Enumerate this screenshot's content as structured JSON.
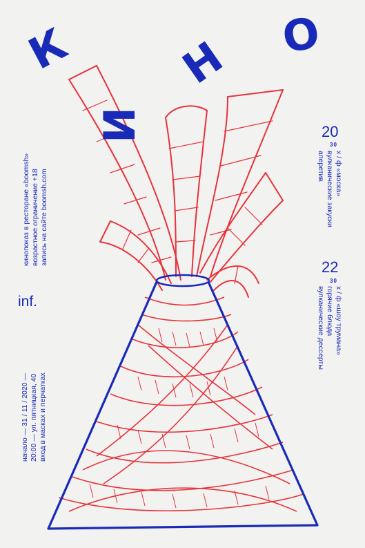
{
  "title": {
    "letters": [
      "К",
      "И",
      "Н",
      "О"
    ]
  },
  "left_info": {
    "lines": [
      "кинопоказ в ресторане «boomsh»",
      "возрастное ограничение +18",
      "запись на сайте boomsh.com"
    ]
  },
  "inf_section": {
    "label": "inf.",
    "lines": [
      "начало — 31 / 11 / 2020 —",
      "20:00 — ул. пятницкая, 40",
      "вход в масках и перчатках"
    ]
  },
  "events": [
    {
      "day": "20",
      "time": "30",
      "film": "х / ф «моска»",
      "menu": [
        "вулканические закуски",
        "аперетив"
      ]
    },
    {
      "day": "22",
      "time": "30",
      "film": "х / ф «шоу трумана»",
      "menu": [
        "горячие блюда",
        "вулканические дессерты"
      ]
    }
  ],
  "colors": {
    "accent_blue": "#1a2ab8",
    "sketch_red": "#e8323a",
    "background": "#f2f2f0"
  }
}
